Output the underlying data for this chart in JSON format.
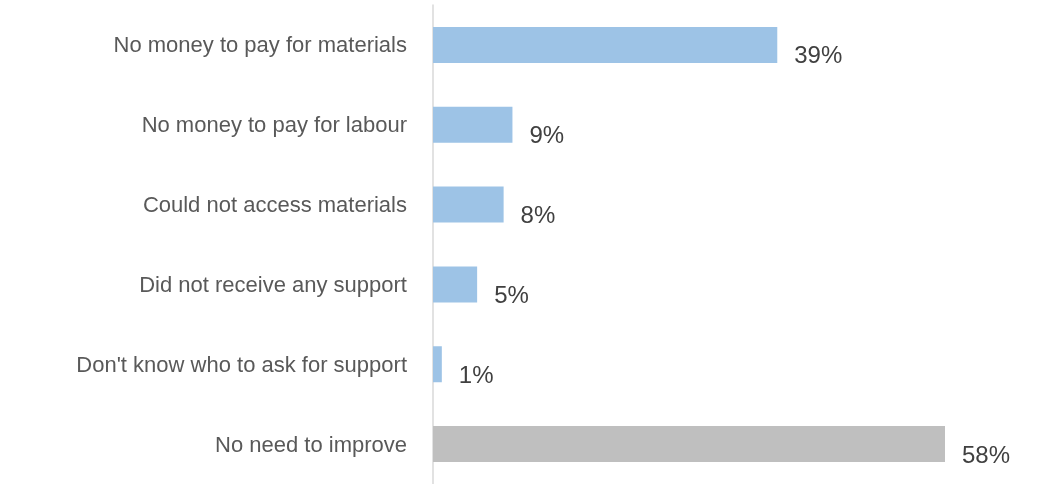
{
  "chart_data": {
    "type": "bar",
    "orientation": "horizontal",
    "value_labels": [
      "39%",
      "9%",
      "8%",
      "5%",
      "1%",
      "58%"
    ],
    "categories": [
      "No money to pay for materials",
      "No money to pay for labour",
      "Could not access materials",
      "Did not receive any support",
      "Don't know who to ask for support",
      "No need to improve"
    ],
    "values": [
      39,
      9,
      8,
      5,
      1,
      58
    ],
    "colors": [
      "#9dc3e6",
      "#9dc3e6",
      "#9dc3e6",
      "#9dc3e6",
      "#9dc3e6",
      "#bfbfbf"
    ]
  }
}
